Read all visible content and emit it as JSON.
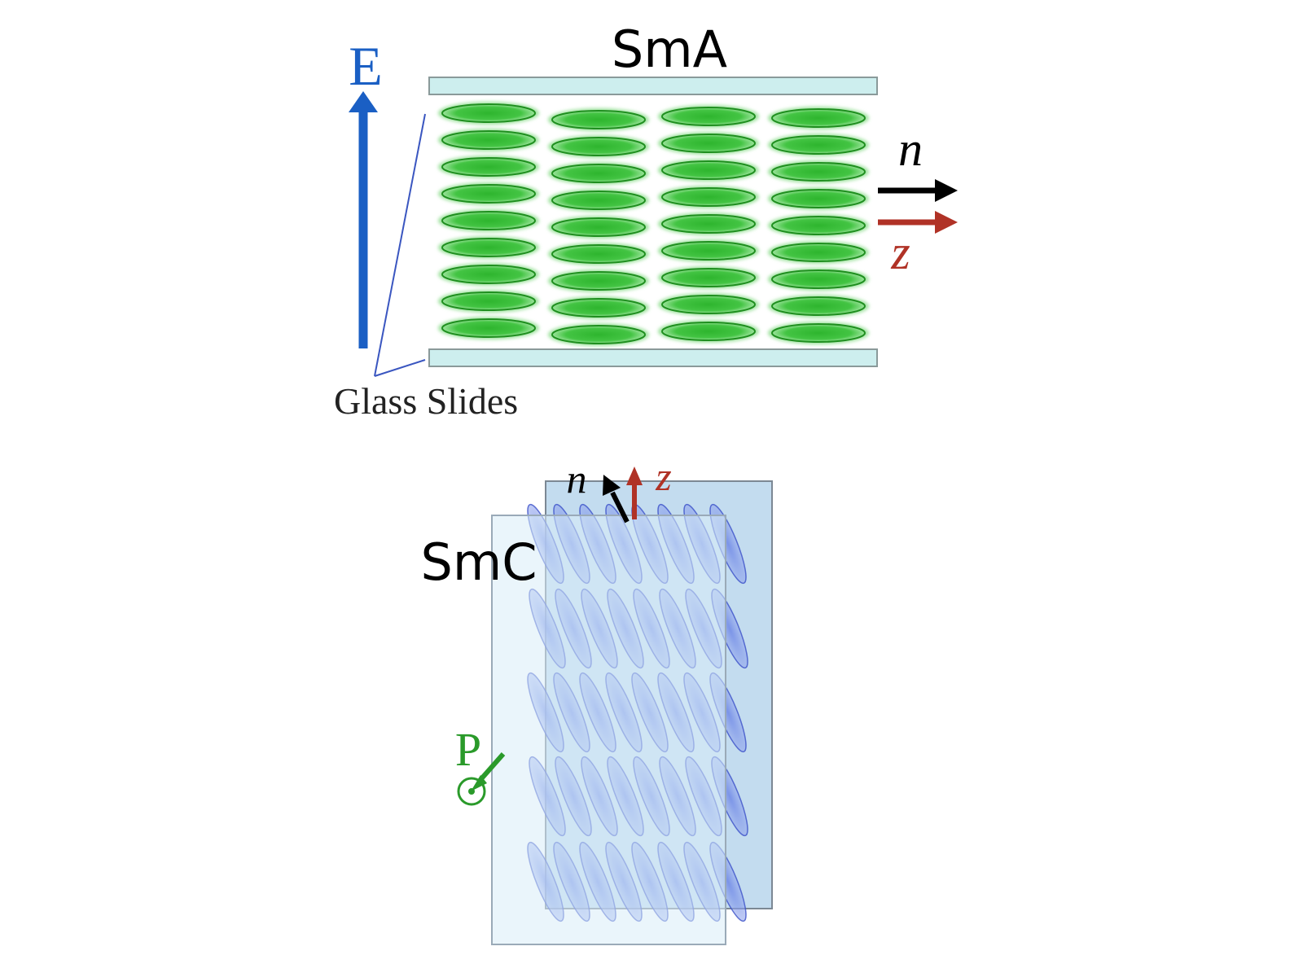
{
  "sma": {
    "title": "SmA",
    "field_label": "E",
    "director_label": "n",
    "layer_normal_label": "z",
    "glass_label": "Glass Slides"
  },
  "smc": {
    "title": "SmC",
    "director_label": "n",
    "layer_normal_label": "z",
    "polarization_label": "P"
  },
  "colors": {
    "field_arrow": "#1a5fc4",
    "director_arrow": "#000000",
    "layer_normal_arrow": "#b03226",
    "molecule_green": "#2fb52f",
    "molecule_blue": "#5a72d8",
    "glass": "#cdeeee",
    "polarization": "#2a9a2a"
  },
  "icons": {
    "field_arrow": "arrow-up-icon",
    "director_arrow": "arrow-right-icon",
    "polarization_symbol": "out-of-page-circle-dot-icon"
  }
}
